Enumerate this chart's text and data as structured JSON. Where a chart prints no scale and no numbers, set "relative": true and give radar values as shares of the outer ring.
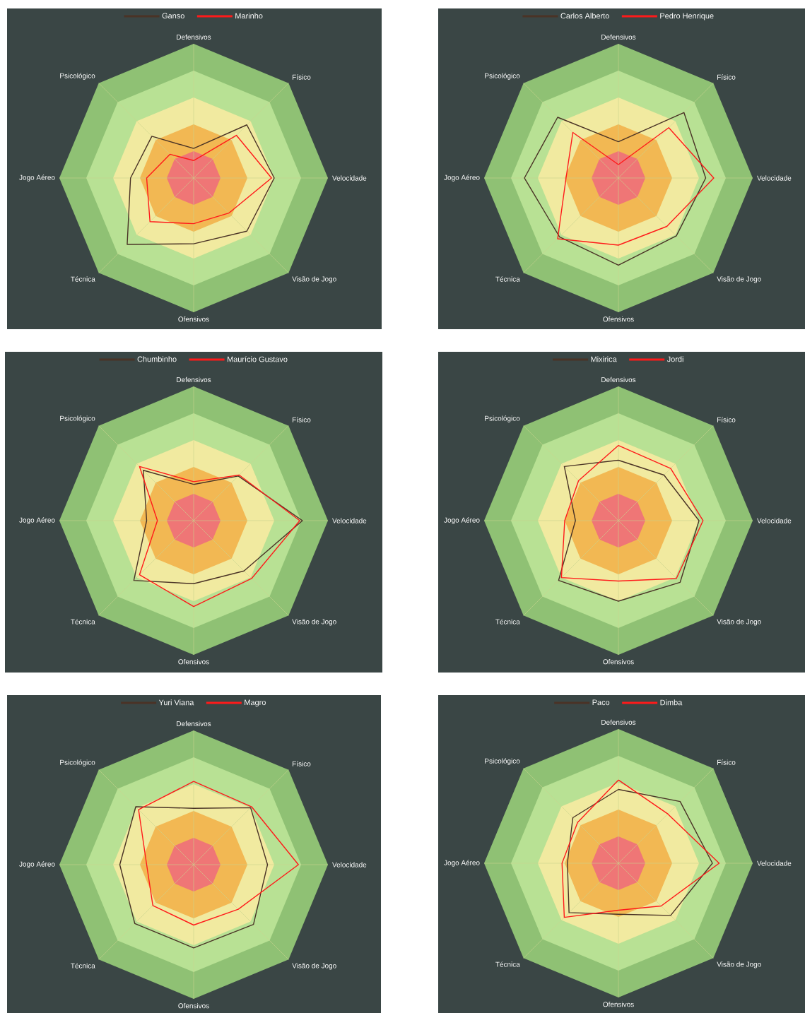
{
  "chart_data": [
    {
      "type": "radar",
      "relative": true,
      "grid": true,
      "legend": "top",
      "categories": [
        "Defensivos",
        "Físico",
        "Velocidade",
        "Visão de Jogo",
        "Ofensivos",
        "Técnica",
        "Jogo Aéreo",
        "Psicológico"
      ],
      "series": [
        {
          "name": "Ganso",
          "color": "#4a3326",
          "values": [
            0.22,
            0.56,
            0.6,
            0.56,
            0.49,
            0.7,
            0.47,
            0.44
          ]
        },
        {
          "name": "Marinho",
          "color": "#ff1a1a",
          "values": [
            0.13,
            0.45,
            0.58,
            0.37,
            0.34,
            0.46,
            0.35,
            0.25
          ]
        }
      ]
    },
    {
      "type": "radar",
      "relative": true,
      "grid": true,
      "legend": "top",
      "categories": [
        "Defensivos",
        "Físico",
        "Velocidade",
        "Visão de Jogo",
        "Ofensivos",
        "Técnica",
        "Jogo Aéreo",
        "Psicológico"
      ],
      "series": [
        {
          "name": "Carlos Alberto",
          "color": "#4a3326",
          "values": [
            0.27,
            0.69,
            0.65,
            0.61,
            0.65,
            0.62,
            0.7,
            0.64
          ]
        },
        {
          "name": "Pedro Henrique",
          "color": "#ff1a1a",
          "values": [
            0.1,
            0.53,
            0.71,
            0.51,
            0.5,
            0.64,
            0.39,
            0.48
          ]
        }
      ]
    },
    {
      "type": "radar",
      "relative": true,
      "grid": true,
      "legend": "top",
      "categories": [
        "Defensivos",
        "Físico",
        "Velocidade",
        "Visão de Jogo",
        "Ofensivos",
        "Técnica",
        "Jogo Aéreo",
        "Psicológico"
      ],
      "series": [
        {
          "name": "Chumbinho",
          "color": "#4a3326",
          "values": [
            0.27,
            0.47,
            0.81,
            0.53,
            0.47,
            0.63,
            0.35,
            0.53
          ]
        },
        {
          "name": "Maurício Gustavo",
          "color": "#ff1a1a",
          "values": [
            0.29,
            0.48,
            0.79,
            0.61,
            0.64,
            0.57,
            0.27,
            0.57
          ]
        }
      ]
    },
    {
      "type": "radar",
      "relative": true,
      "grid": true,
      "legend": "top",
      "categories": [
        "Defensivos",
        "Físico",
        "Velocidade",
        "Visão de Jogo",
        "Ofensivos",
        "Técnica",
        "Jogo Aéreo",
        "Psicológico"
      ],
      "series": [
        {
          "name": "Mixirica",
          "color": "#4a3326",
          "values": [
            0.45,
            0.48,
            0.6,
            0.65,
            0.6,
            0.63,
            0.32,
            0.57
          ]
        },
        {
          "name": "Jordi",
          "color": "#ff1a1a",
          "values": [
            0.56,
            0.55,
            0.63,
            0.61,
            0.45,
            0.6,
            0.4,
            0.42
          ]
        }
      ]
    },
    {
      "type": "radar",
      "relative": true,
      "grid": true,
      "legend": "top",
      "categories": [
        "Defensivos",
        "Físico",
        "Velocidade",
        "Visão de Jogo",
        "Ofensivos",
        "Técnica",
        "Jogo Aéreo",
        "Psicológico"
      ],
      "series": [
        {
          "name": "Yuri Viana",
          "color": "#4a3326",
          "values": [
            0.42,
            0.6,
            0.55,
            0.63,
            0.62,
            0.62,
            0.55,
            0.61
          ]
        },
        {
          "name": "Magro",
          "color": "#ff1a1a",
          "values": [
            0.62,
            0.61,
            0.78,
            0.47,
            0.45,
            0.43,
            0.35,
            0.58
          ]
        }
      ]
    },
    {
      "type": "radar",
      "relative": true,
      "grid": true,
      "legend": "top",
      "categories": [
        "Defensivos",
        "Físico",
        "Velocidade",
        "Visão de Jogo",
        "Ofensivos",
        "Técnica",
        "Jogo Aéreo",
        "Psicológico"
      ],
      "series": [
        {
          "name": "Paco",
          "color": "#4a3326",
          "values": [
            0.55,
            0.65,
            0.7,
            0.55,
            0.38,
            0.52,
            0.38,
            0.48
          ]
        },
        {
          "name": "Dimba",
          "color": "#ff1a1a",
          "values": [
            0.62,
            0.52,
            0.75,
            0.45,
            0.35,
            0.57,
            0.42,
            0.43
          ]
        }
      ]
    }
  ]
}
